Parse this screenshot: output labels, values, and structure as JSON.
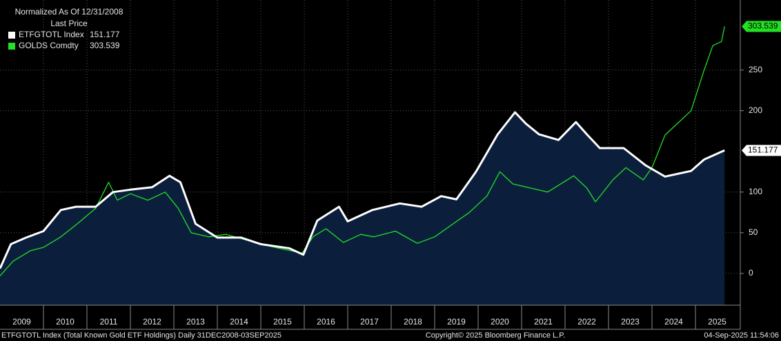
{
  "chart_data": {
    "type": "line",
    "legend_title": "Normalized As Of 12/31/2008",
    "legend_subtitle": "Last Price",
    "footer_left": "ETFGTOTL Index (Total Known Gold ETF Holdings)  Daily 31DEC2008-03SEP2025",
    "footer_center": "Copyright© 2025 Bloomberg Finance L.P.",
    "footer_right": "04-Sep-2025 11:54:06",
    "xlim": [
      2009,
      2026
    ],
    "xticks": [
      2009,
      2010,
      2011,
      2012,
      2013,
      2014,
      2015,
      2016,
      2017,
      2018,
      2019,
      2020,
      2021,
      2022,
      2023,
      2024,
      2025
    ],
    "ylim": [
      -39,
      336
    ],
    "yticks": [
      0,
      50,
      100,
      200,
      250
    ],
    "grid": true,
    "series": [
      {
        "name": "ETFGTOTL Index",
        "color": "#ffffff",
        "fill": "#0b1f3d",
        "last_price": 151.177,
        "x": [
          2009.0,
          2009.25,
          2009.6,
          2010.0,
          2010.4,
          2010.75,
          2011.2,
          2011.6,
          2012.0,
          2012.5,
          2012.9,
          2013.15,
          2013.5,
          2014.0,
          2014.55,
          2015.0,
          2015.65,
          2015.98,
          2016.3,
          2016.8,
          2017.0,
          2017.57,
          2018.2,
          2018.7,
          2019.15,
          2019.5,
          2019.95,
          2020.45,
          2020.85,
          2021.1,
          2021.4,
          2021.85,
          2022.25,
          2022.5,
          2022.8,
          2023.35,
          2023.85,
          2024.3,
          2024.9,
          2025.2,
          2025.67
        ],
        "values": [
          6,
          36,
          44,
          52,
          78,
          82,
          82,
          100,
          103,
          106,
          120,
          112,
          61,
          44,
          44,
          36,
          31,
          23,
          65,
          82,
          64,
          78,
          86,
          82,
          95,
          91,
          125,
          171,
          198,
          184,
          171,
          164,
          186,
          171,
          154,
          154,
          133,
          119,
          126,
          140,
          151.177
        ]
      },
      {
        "name": "GOLDS Comdty",
        "color": "#22e022",
        "last_price": 303.539,
        "x": [
          2009.0,
          2009.3,
          2009.7,
          2010.0,
          2010.4,
          2010.8,
          2011.2,
          2011.5,
          2011.7,
          2012.0,
          2012.4,
          2012.8,
          2013.1,
          2013.4,
          2013.8,
          2014.2,
          2014.6,
          2015.0,
          2015.5,
          2015.95,
          2016.2,
          2016.5,
          2016.9,
          2017.3,
          2017.6,
          2018.1,
          2018.6,
          2019.0,
          2019.4,
          2019.8,
          2020.2,
          2020.5,
          2020.8,
          2021.2,
          2021.6,
          2022.2,
          2022.5,
          2022.7,
          2023.1,
          2023.4,
          2023.8,
          2024.0,
          2024.3,
          2024.6,
          2024.9,
          2025.2,
          2025.4,
          2025.6,
          2025.67
        ],
        "values": [
          -3,
          15,
          28,
          32,
          45,
          62,
          80,
          112,
          90,
          98,
          90,
          100,
          80,
          50,
          45,
          48,
          42,
          36,
          30,
          25,
          45,
          55,
          38,
          48,
          45,
          52,
          37,
          45,
          60,
          75,
          95,
          125,
          110,
          105,
          100,
          120,
          105,
          88,
          115,
          130,
          115,
          130,
          170,
          185,
          200,
          250,
          280,
          285,
          303.539
        ]
      }
    ]
  }
}
